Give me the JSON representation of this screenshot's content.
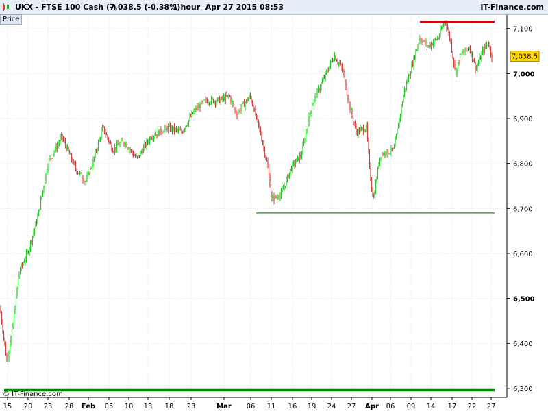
{
  "header": {
    "symbol": "UKX - FTSE 100 Cash (-)",
    "quote": "7,038.5 (-0.38%)",
    "timeframe": "1 hour  Apr 27 2015 08:53",
    "brand": "IT-Finance.com"
  },
  "price_tab": "Price",
  "copyright": "© IT-Finance.com",
  "last_price_label": "7,038.5",
  "colors": {
    "up": "#22cc22",
    "down": "#d04040",
    "support_thin": "#2e7d32",
    "support_thick": "#008800",
    "resistance": "#dd0000",
    "price_tag": "#ffd700"
  },
  "chart_data": {
    "type": "candlestick",
    "ylim": [
      6280,
      7130
    ],
    "y_ticks": [
      {
        "value": 6300,
        "label": "6,300",
        "bold": false
      },
      {
        "value": 6400,
        "label": "6,400",
        "bold": false
      },
      {
        "value": 6500,
        "label": "6,500",
        "bold": true
      },
      {
        "value": 6600,
        "label": "6,600",
        "bold": false
      },
      {
        "value": 6700,
        "label": "6,700",
        "bold": false
      },
      {
        "value": 6800,
        "label": "6,800",
        "bold": false
      },
      {
        "value": 6900,
        "label": "6,900",
        "bold": false
      },
      {
        "value": 7000,
        "label": "7,000",
        "bold": true
      },
      {
        "value": 7100,
        "label": "7,100",
        "bold": false
      }
    ],
    "x_ticks": [
      {
        "label": "15",
        "bold": false
      },
      {
        "label": "20",
        "bold": false
      },
      {
        "label": "23",
        "bold": false
      },
      {
        "label": "28",
        "bold": false
      },
      {
        "label": "Feb",
        "bold": true
      },
      {
        "label": "05",
        "bold": false
      },
      {
        "label": "10",
        "bold": false
      },
      {
        "label": "13",
        "bold": false
      },
      {
        "label": "18",
        "bold": false
      },
      {
        "label": "23",
        "bold": false
      },
      {
        "label": "Mar",
        "bold": true
      },
      {
        "label": "06",
        "bold": false
      },
      {
        "label": "11",
        "bold": false
      },
      {
        "label": "16",
        "bold": false
      },
      {
        "label": "19",
        "bold": false
      },
      {
        "label": "24",
        "bold": false
      },
      {
        "label": "27",
        "bold": false
      },
      {
        "label": "Apr",
        "bold": true
      },
      {
        "label": "06",
        "bold": false
      },
      {
        "label": "09",
        "bold": false
      },
      {
        "label": "14",
        "bold": false
      },
      {
        "label": "17",
        "bold": false
      },
      {
        "label": "22",
        "bold": false
      },
      {
        "label": "27",
        "bold": false
      }
    ],
    "last_price": 7038.5,
    "path_keypoints": [
      [
        0,
        6480
      ],
      [
        10,
        6360
      ],
      [
        18,
        6430
      ],
      [
        28,
        6560
      ],
      [
        40,
        6600
      ],
      [
        55,
        6680
      ],
      [
        70,
        6800
      ],
      [
        90,
        6860
      ],
      [
        110,
        6790
      ],
      [
        125,
        6760
      ],
      [
        135,
        6800
      ],
      [
        150,
        6880
      ],
      [
        165,
        6830
      ],
      [
        180,
        6850
      ],
      [
        200,
        6810
      ],
      [
        220,
        6860
      ],
      [
        245,
        6880
      ],
      [
        265,
        6870
      ],
      [
        285,
        6920
      ],
      [
        300,
        6940
      ],
      [
        320,
        6940
      ],
      [
        335,
        6950
      ],
      [
        345,
        6910
      ],
      [
        365,
        6950
      ],
      [
        380,
        6870
      ],
      [
        390,
        6800
      ],
      [
        397,
        6720
      ],
      [
        410,
        6730
      ],
      [
        425,
        6790
      ],
      [
        440,
        6820
      ],
      [
        455,
        6930
      ],
      [
        470,
        6980
      ],
      [
        488,
        7040
      ],
      [
        500,
        7010
      ],
      [
        510,
        6930
      ],
      [
        520,
        6870
      ],
      [
        535,
        6880
      ],
      [
        540,
        6780
      ],
      [
        545,
        6720
      ],
      [
        555,
        6820
      ],
      [
        575,
        6830
      ],
      [
        590,
        6960
      ],
      [
        600,
        7010
      ],
      [
        613,
        7080
      ],
      [
        625,
        7060
      ],
      [
        640,
        7080
      ],
      [
        650,
        7120
      ],
      [
        658,
        7070
      ],
      [
        665,
        7000
      ],
      [
        672,
        7040
      ],
      [
        685,
        7060
      ],
      [
        695,
        7010
      ],
      [
        705,
        7050
      ],
      [
        713,
        7070
      ],
      [
        718,
        7038.5
      ]
    ],
    "support_levels": [
      6690,
      6296
    ],
    "resistance_levels": [
      7115
    ]
  }
}
